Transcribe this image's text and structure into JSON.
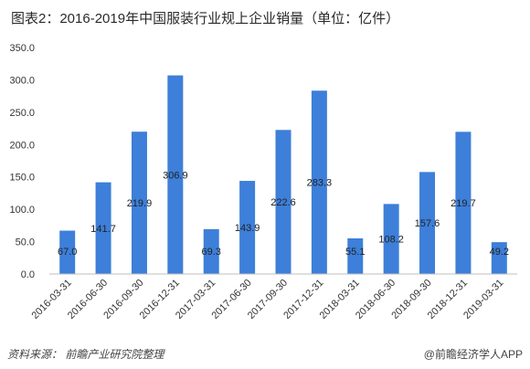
{
  "title": "图表2：2016-2019年中国服装行业规上企业销量（单位：亿件）",
  "source": "资料来源：  前瞻产业研究院整理",
  "brand": "@前瞻经济学人APP",
  "colors": {
    "bar": "#3d7fd9",
    "axis": "#bfbfbf"
  },
  "chart_data": {
    "type": "bar",
    "title": "图表2：2016-2019年中国服装行业规上企业销量（单位：亿件）",
    "xlabel": "",
    "ylabel": "",
    "ylim": [
      0,
      350
    ],
    "yticks": [
      "0.0",
      "50.0",
      "100.0",
      "150.0",
      "200.0",
      "250.0",
      "300.0",
      "350.0"
    ],
    "grid": false,
    "categories": [
      "2016-03-31",
      "2016-06-30",
      "2016-09-30",
      "2016-12-31",
      "2017-03-31",
      "2017-06-30",
      "2017-09-30",
      "2017-12-31",
      "2018-03-31",
      "2018-06-30",
      "2018-09-30",
      "2018-12-31",
      "2019-03-31"
    ],
    "values": [
      67.0,
      141.7,
      219.9,
      306.9,
      69.3,
      143.9,
      222.6,
      283.3,
      55.1,
      108.2,
      157.6,
      219.7,
      49.2
    ],
    "labels": [
      "67.0",
      "141.7",
      "219.9",
      "306.9",
      "69.3",
      "143.9",
      "222.6",
      "283.3",
      "55.1",
      "108.2",
      "157.6",
      "219.7",
      "49.2"
    ]
  }
}
